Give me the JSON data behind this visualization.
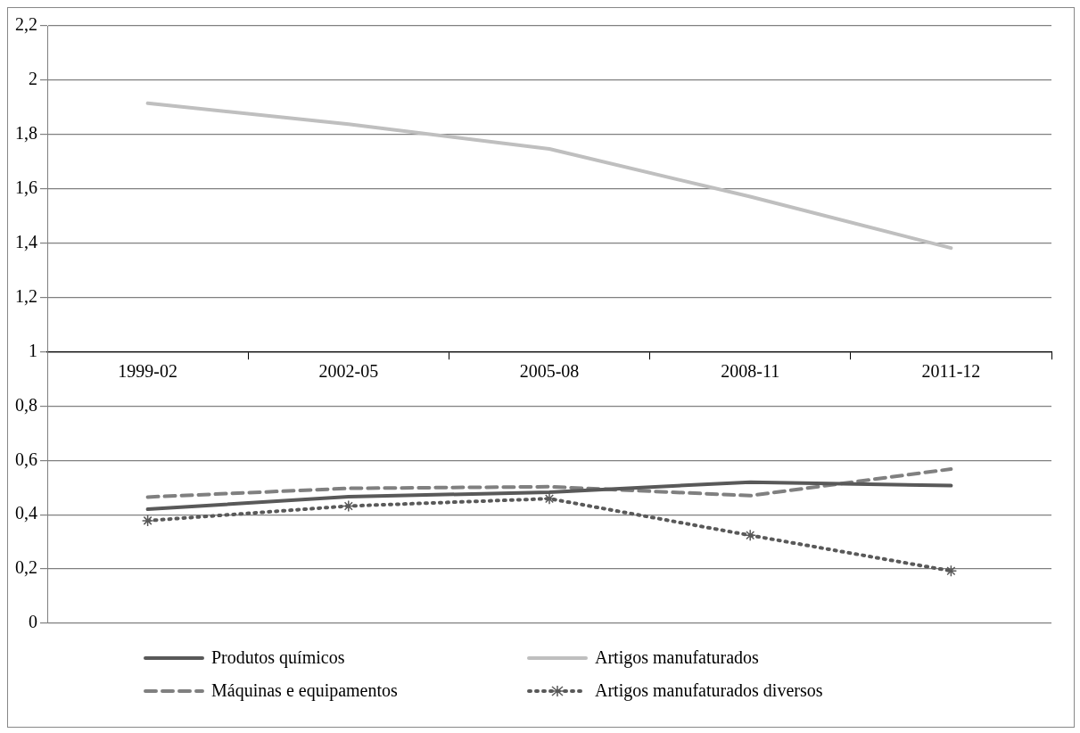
{
  "chart_data": {
    "type": "line",
    "categories": [
      "1999-02",
      "2002-05",
      "2005-08",
      "2008-11",
      "2011-12"
    ],
    "series": [
      {
        "name": "Produtos químicos",
        "color": "#595959",
        "values": [
          0.42,
          0.466,
          0.483,
          0.52,
          0.507
        ],
        "line_style": "solid",
        "marker": "none"
      },
      {
        "name": "Artigos manufaturados",
        "color": "#bfbfbf",
        "values": [
          1.915,
          1.838,
          1.747,
          1.571,
          1.382
        ],
        "line_style": "solid",
        "marker": "none"
      },
      {
        "name": "Máquinas e equipamentos",
        "color": "#808080",
        "values": [
          0.465,
          0.497,
          0.503,
          0.47,
          0.568
        ],
        "line_style": "dashed",
        "marker": "none"
      },
      {
        "name": "Artigos manufaturados diversos",
        "color": "#595959",
        "values": [
          0.378,
          0.432,
          0.459,
          0.324,
          0.193
        ],
        "line_style": "dotted",
        "marker": "cross"
      }
    ],
    "ylim": [
      0,
      2.2
    ],
    "yticks": [
      0,
      {
        "value": 0.2,
        "label": "0,2"
      },
      {
        "value": 0.4,
        "label": "0,4"
      },
      {
        "value": 0.6,
        "label": "0,6"
      },
      {
        "value": 0.8,
        "label": "0,8"
      },
      1,
      {
        "value": 1.2,
        "label": "1,2"
      },
      {
        "value": 1.4,
        "label": "1,4"
      },
      {
        "value": 1.6,
        "label": "1,6"
      },
      {
        "value": 1.8,
        "label": "1,8"
      },
      2,
      {
        "value": 2.2,
        "label": "2,2"
      }
    ],
    "grid": "y",
    "legend": "bottom"
  }
}
